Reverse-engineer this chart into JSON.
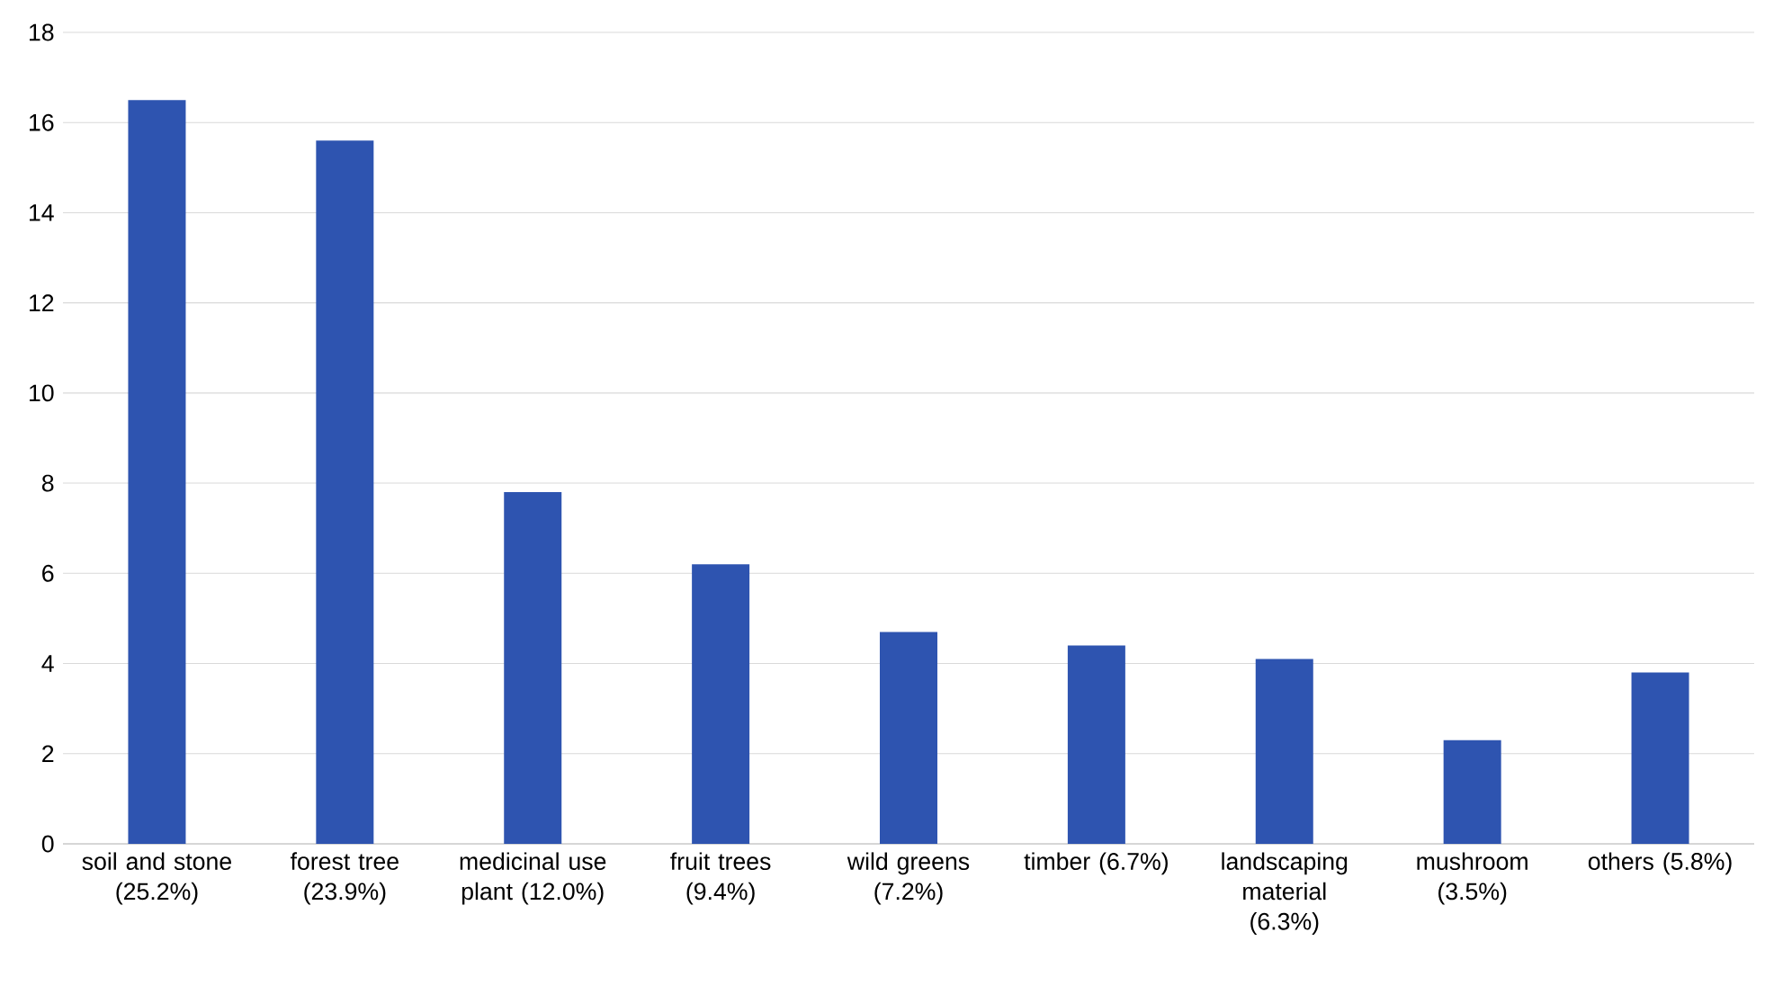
{
  "chart_data": {
    "type": "bar",
    "categories": [
      "soil and stone (25.2%)",
      "forest tree (23.9%)",
      "medicinal use plant (12.0%)",
      "fruit trees (9.4%)",
      "wild greens (7.2%)",
      "timber (6.7%)",
      "landscaping material (6.3%)",
      "mushroom (3.5%)",
      "others (5.8%)"
    ],
    "values": [
      16.5,
      15.6,
      7.8,
      6.2,
      4.7,
      4.4,
      4.1,
      2.3,
      3.8
    ],
    "color": "#2e54b0",
    "ylim": [
      0,
      18
    ],
    "yticks": [
      0,
      2,
      4,
      6,
      8,
      10,
      12,
      14,
      16,
      18
    ],
    "grid": "y"
  }
}
